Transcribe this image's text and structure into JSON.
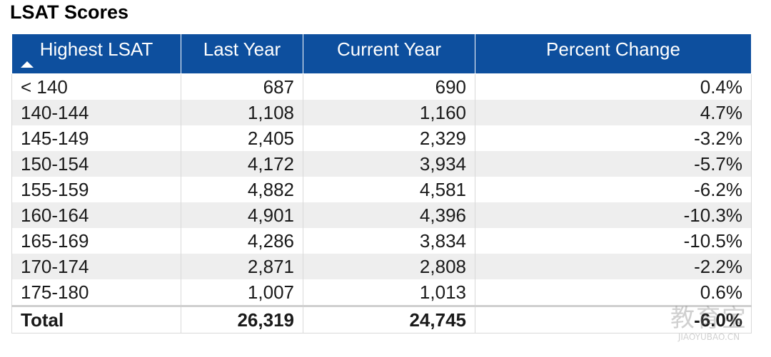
{
  "title": "LSAT Scores",
  "table": {
    "headers": [
      "Highest LSAT",
      "Last Year",
      "Current Year",
      "Percent Change"
    ],
    "sort_icon": "sort-ascending-icon",
    "rows": [
      [
        "< 140",
        "687",
        "690",
        "0.4%"
      ],
      [
        "140-144",
        "1,108",
        "1,160",
        "4.7%"
      ],
      [
        "145-149",
        "2,405",
        "2,329",
        "-3.2%"
      ],
      [
        "150-154",
        "4,172",
        "3,934",
        "-5.7%"
      ],
      [
        "155-159",
        "4,882",
        "4,581",
        "-6.2%"
      ],
      [
        "160-164",
        "4,901",
        "4,396",
        "-10.3%"
      ],
      [
        "165-169",
        "4,286",
        "3,834",
        "-10.5%"
      ],
      [
        "170-174",
        "2,871",
        "2,808",
        "-2.2%"
      ],
      [
        "175-180",
        "1,007",
        "1,013",
        "0.6%"
      ]
    ],
    "total": [
      "Total",
      "26,319",
      "24,745",
      "-6.0%"
    ]
  },
  "watermark": {
    "main": "教育宝",
    "sub": "JIAOYUBAO.CN"
  },
  "colors": {
    "header_bg": "#0d4f9e",
    "header_text": "#ffffff",
    "stripe": "#eeeeee"
  }
}
